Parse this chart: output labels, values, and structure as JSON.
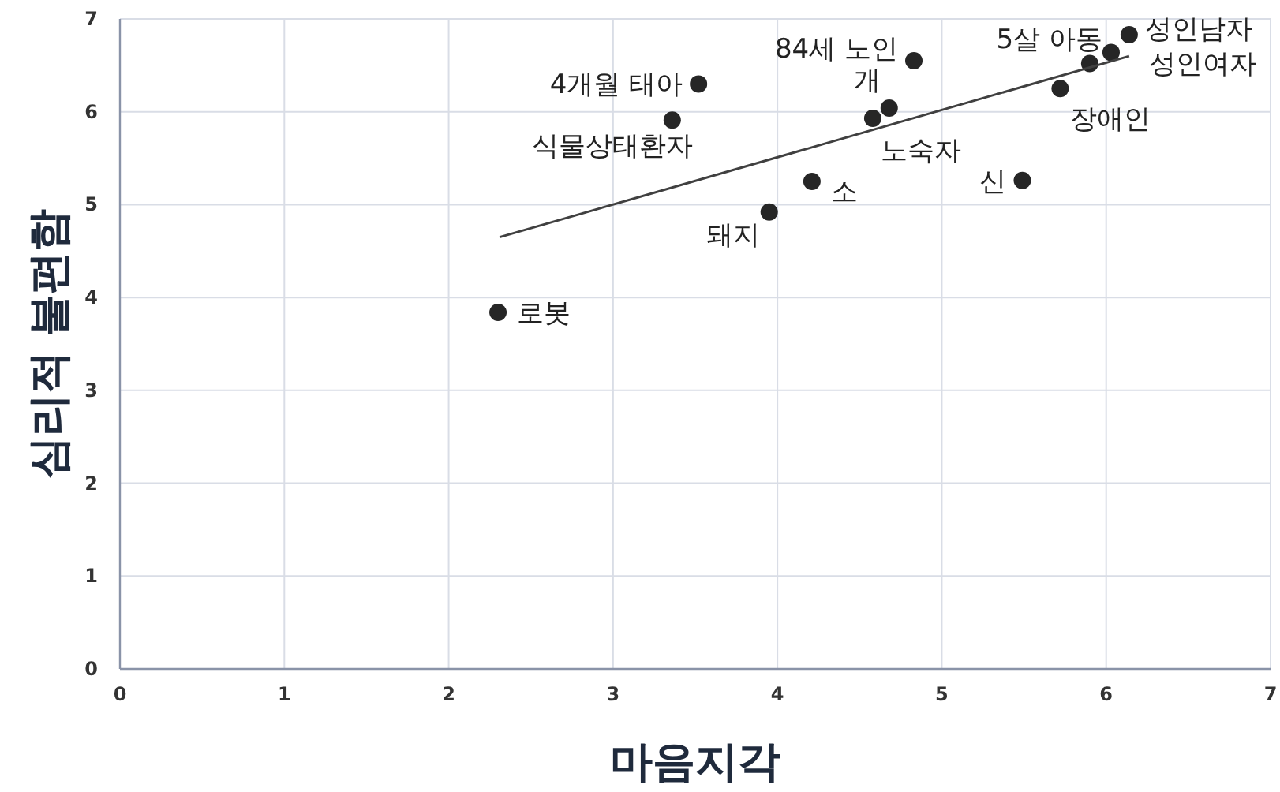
{
  "chart_data": {
    "type": "scatter",
    "xlabel": "마음지각",
    "ylabel": "심리적 불편함",
    "xlim": [
      0,
      7
    ],
    "ylim": [
      0,
      7
    ],
    "xticks": [
      0,
      1,
      2,
      3,
      4,
      5,
      6,
      7
    ],
    "yticks": [
      0,
      1,
      2,
      3,
      4,
      5,
      6,
      7
    ],
    "grid": true,
    "series": [
      {
        "marker": "circle",
        "color": "#262626",
        "x": [
          2.3,
          3.52,
          3.36,
          3.95,
          4.21,
          4.68,
          4.58,
          4.83,
          5.49,
          5.72,
          5.9,
          6.03,
          6.14
        ],
        "values": [
          3.84,
          6.3,
          5.91,
          4.92,
          5.25,
          6.04,
          5.93,
          6.55,
          5.26,
          6.25,
          6.52,
          6.64,
          6.83
        ]
      },
      {
        "type": "line",
        "color": "#404040",
        "x": [
          2.31,
          6.14
        ],
        "values": [
          4.65,
          6.6
        ]
      }
    ],
    "annotations": [
      {
        "text": "로봇",
        "x": 2.3,
        "y": 3.84
      },
      {
        "text": "4개월 태아",
        "x": 3.52,
        "y": 6.3
      },
      {
        "text": "식물상태환자",
        "x": 3.36,
        "y": 5.91
      },
      {
        "text": "돼지",
        "x": 3.95,
        "y": 4.92
      },
      {
        "text": "소",
        "x": 4.21,
        "y": 5.25
      },
      {
        "text": "개",
        "x": 4.68,
        "y": 6.04
      },
      {
        "text": "노숙자",
        "x": 4.58,
        "y": 5.93
      },
      {
        "text": "84세 노인",
        "x": 4.83,
        "y": 6.55
      },
      {
        "text": "신",
        "x": 5.49,
        "y": 5.26
      },
      {
        "text": "장애인",
        "x": 5.72,
        "y": 6.25
      },
      {
        "text": "5살 아동",
        "x": 5.9,
        "y": 6.52
      },
      {
        "text": "성인여자",
        "x": 6.03,
        "y": 6.64
      },
      {
        "text": "성인남자",
        "x": 6.14,
        "y": 6.83
      }
    ]
  }
}
